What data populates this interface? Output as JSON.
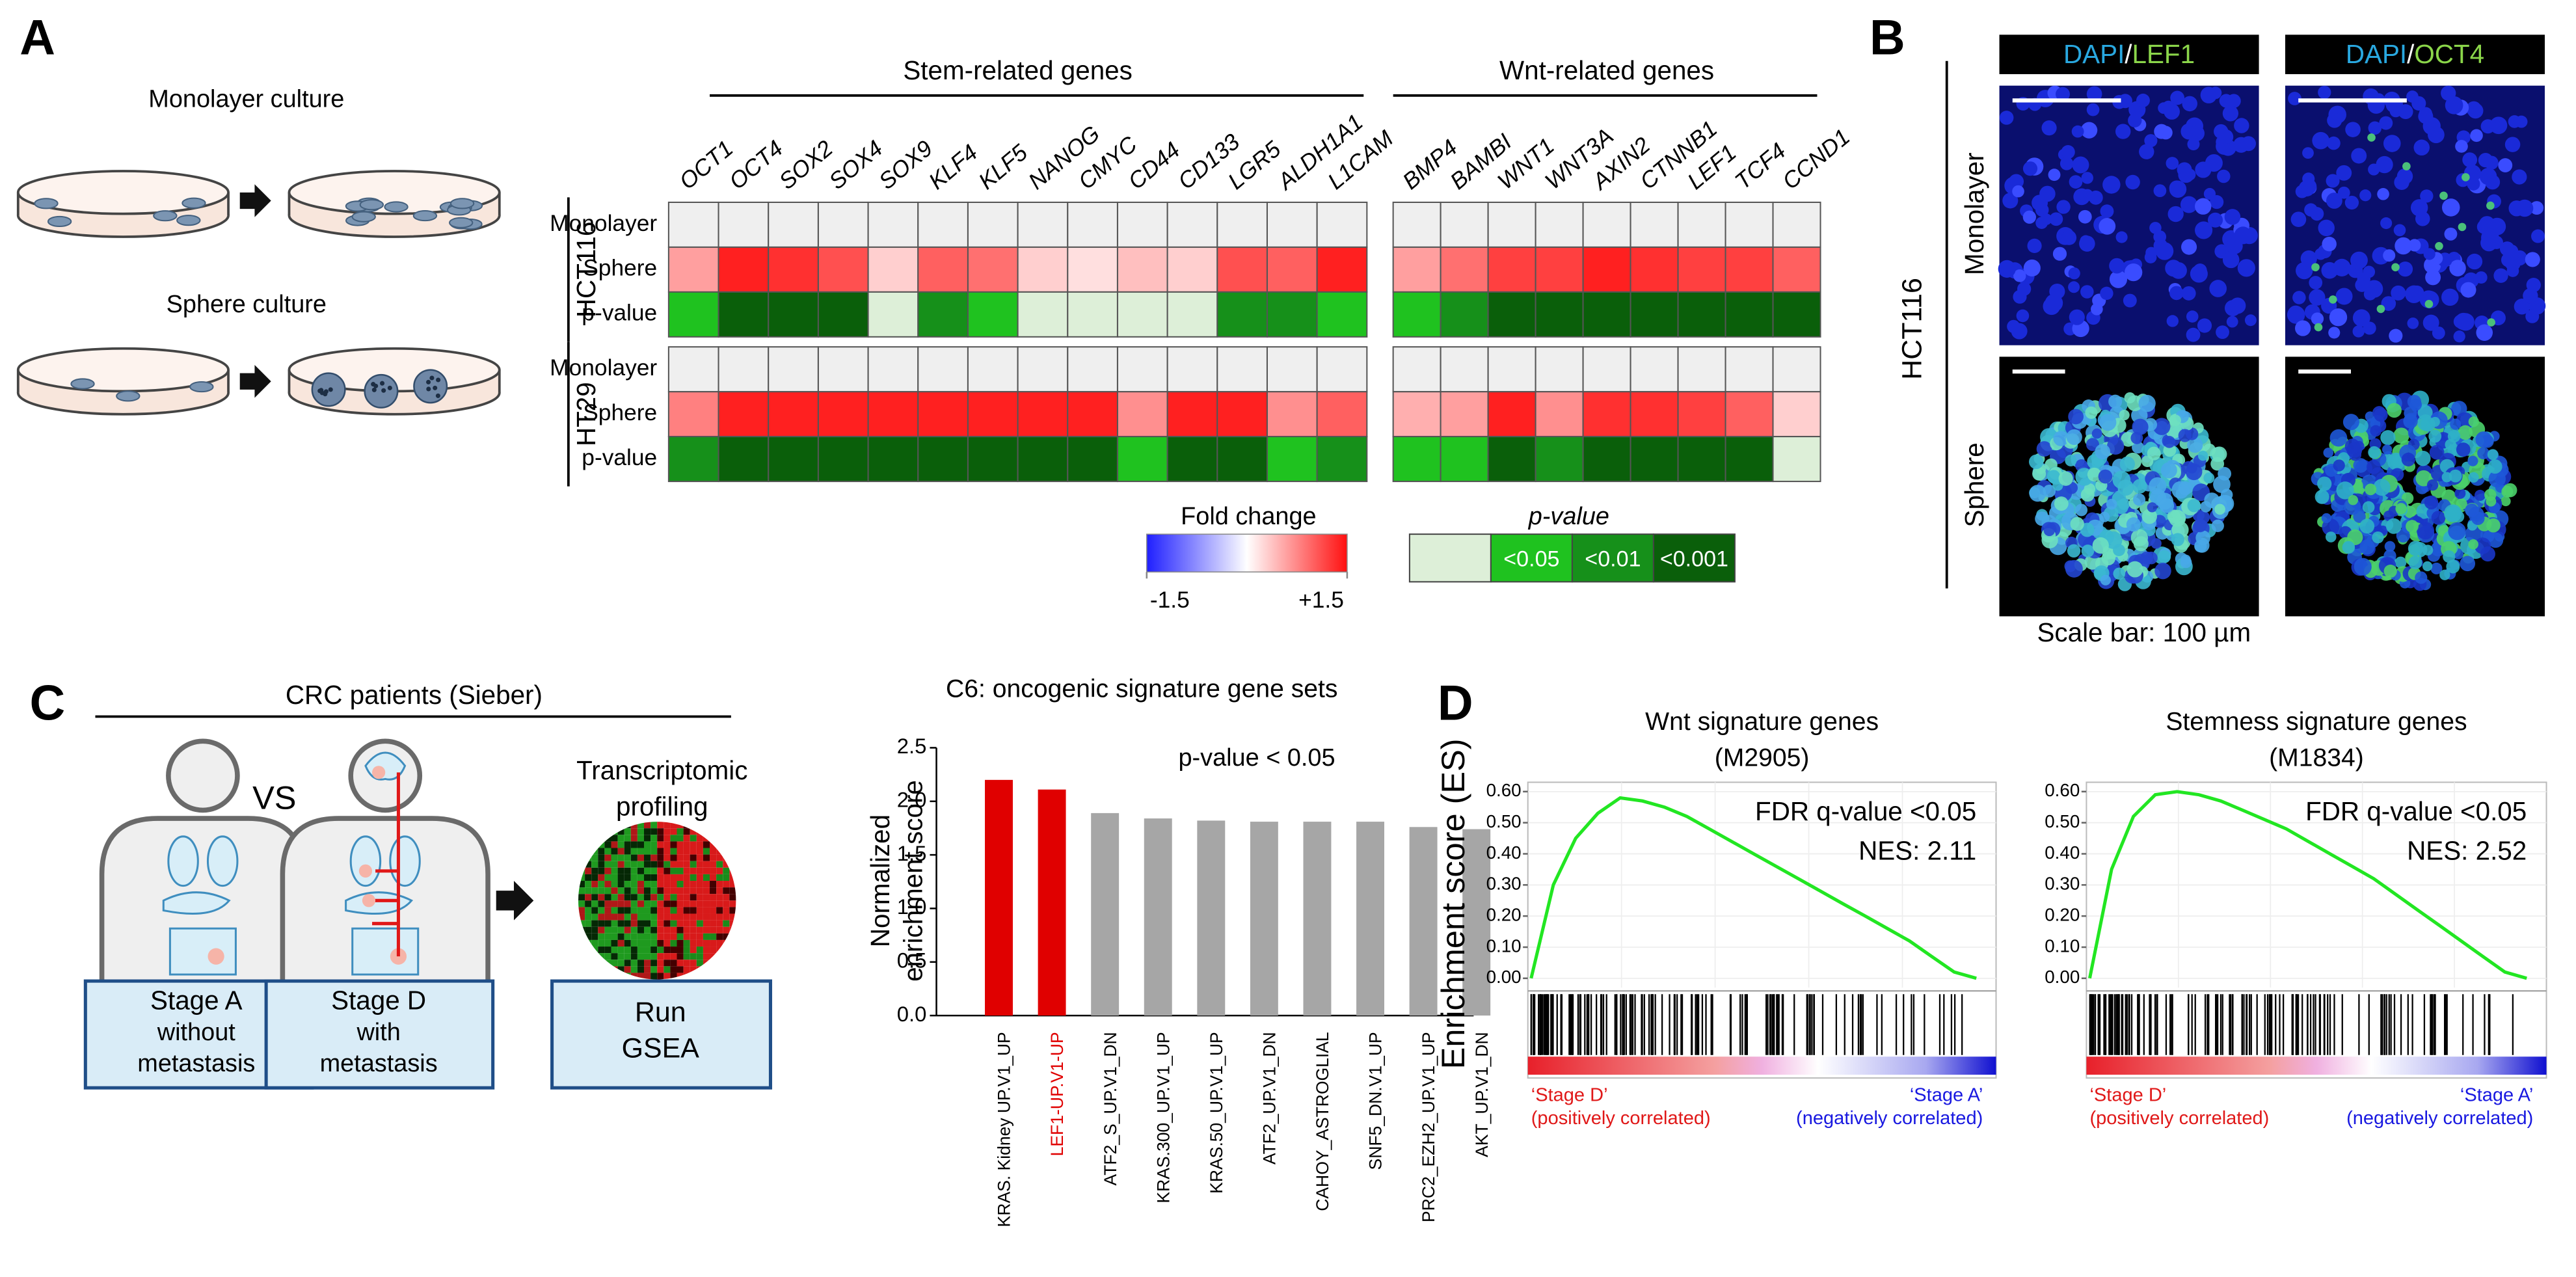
{
  "panel_labels": [
    "A",
    "B",
    "C",
    "D"
  ],
  "panel_a": {
    "culture": {
      "monolayer": "Monolayer culture",
      "sphere": "Sphere culture"
    },
    "heatmap": {
      "groups": [
        {
          "title": "Stem-related genes",
          "genes": [
            "OCT1",
            "OCT4",
            "SOX2",
            "SOX4",
            "SOX9",
            "KLF4",
            "KLF5",
            "NANOG",
            "CMYC",
            "CD44",
            "CD133",
            "LGR5",
            "ALDH1A1",
            "L1CAM"
          ]
        },
        {
          "title": "Wnt-related genes",
          "genes": [
            "BMP4",
            "BAMBI",
            "WNT1",
            "WNT3A",
            "AXIN2",
            "CTNNB1",
            "LEF1",
            "TCF4",
            "CCND1"
          ]
        }
      ],
      "row_labels": [
        "Monolayer",
        "Sphere",
        "p-value"
      ],
      "cell_lines": [
        {
          "name": "HCT116",
          "monolayer": [
            [
              0,
              0,
              0,
              0,
              0,
              0,
              0,
              0,
              0,
              0,
              0,
              0,
              0,
              0
            ],
            [
              0,
              0,
              0,
              0,
              0,
              0,
              0,
              0,
              0
            ]
          ],
          "sphere": [
            [
              0.6,
              1.4,
              1.3,
              1.1,
              0.3,
              1.0,
              0.9,
              0.3,
              0.2,
              0.4,
              0.3,
              1.1,
              1.0,
              1.4
            ],
            [
              0.6,
              0.9,
              1.2,
              1.2,
              1.4,
              1.3,
              1.2,
              1.2,
              1.0
            ]
          ],
          "p_level": [
            [
              1,
              3,
              3,
              3,
              0,
              2,
              1,
              0,
              0,
              0,
              0,
              2,
              2,
              1
            ],
            [
              1,
              2,
              3,
              3,
              3,
              3,
              3,
              3,
              3
            ]
          ]
        },
        {
          "name": "HT29",
          "monolayer": [
            [
              0,
              0,
              0,
              0,
              0,
              0,
              0,
              0,
              0,
              0,
              0,
              0,
              0,
              0
            ],
            [
              0,
              0,
              0,
              0,
              0,
              0,
              0,
              0,
              0
            ]
          ],
          "sphere": [
            [
              0.8,
              1.4,
              1.4,
              1.4,
              1.4,
              1.4,
              1.4,
              1.4,
              1.4,
              0.7,
              1.4,
              1.4,
              0.7,
              1.0
            ],
            [
              0.5,
              0.6,
              1.4,
              0.7,
              1.3,
              1.3,
              1.2,
              1.0,
              0.3
            ]
          ],
          "p_level": [
            [
              2,
              3,
              3,
              3,
              3,
              3,
              3,
              3,
              3,
              1,
              3,
              3,
              1,
              2
            ],
            [
              1,
              1,
              3,
              2,
              3,
              3,
              3,
              3,
              0
            ]
          ]
        }
      ],
      "fold_legend": {
        "title": "Fold change",
        "range": [
          {
            "value": -1.5,
            "label": "-1.5"
          },
          {
            "value": 1.5,
            "label": "+1.5"
          }
        ],
        "colors": [
          "#1f1fff",
          "#ffffff",
          "#ff1010"
        ],
        "baseline_color": "#efefef"
      },
      "p_legend": {
        "title": "p-value",
        "labels": [
          "<0.05",
          "<0.01",
          "<0.001"
        ],
        "colors": [
          "#ddefd8",
          "#1fc21f",
          "#16901a",
          "#0a5f0a"
        ]
      }
    }
  },
  "panel_b": {
    "stains": [
      [
        "DAPI",
        "/",
        "LEF1"
      ],
      [
        "DAPI",
        "/",
        "OCT4"
      ]
    ],
    "stain_colors": [
      "#29a8e0",
      "#ffffff",
      "#8bd64a"
    ],
    "rows": [
      "Monolayer",
      "Sphere"
    ],
    "cell_line": "HCT116",
    "scale_note": "Scale bar: 100 µm"
  },
  "panel_c": {
    "cohort": "CRC patients (Sieber)",
    "vs": "VS",
    "stage_boxes": [
      [
        "Stage A",
        "without",
        "metastasis"
      ],
      [
        "Stage D",
        "with",
        "metastasis"
      ]
    ],
    "profiling": [
      "Transcriptomic",
      "profiling"
    ],
    "run": [
      "Run",
      "GSEA"
    ]
  },
  "chart_data": [
    {
      "type": "bar",
      "title": "C6: oncogenic signature gene sets",
      "y_label": [
        "Normalized",
        "enrichment score"
      ],
      "annotation": "p-value < 0.05",
      "categories": [
        "KRAS. Kidney UP.V1_UP",
        "LEF1-UP.V1-UP",
        "ATF2_S_UP.V1_DN",
        "KRAS.300_UP.V1_UP",
        "KRAS.50_UP.V1_UP",
        "ATF2_UP.V1_DN",
        "CAHOY_ASTROGLIAL",
        "SNF5_DN.V1_UP",
        "PRC2_EZH2_UP.V1_UP",
        "AKT_UP.V1_DN"
      ],
      "values": [
        2.2,
        2.11,
        1.89,
        1.84,
        1.82,
        1.81,
        1.81,
        1.81,
        1.76,
        1.74
      ],
      "colors": [
        "#e00000",
        "#e00000",
        "#a6a6a6",
        "#a6a6a6",
        "#a6a6a6",
        "#a6a6a6",
        "#a6a6a6",
        "#a6a6a6",
        "#a6a6a6",
        "#a6a6a6"
      ],
      "category_colors": [
        "#000000",
        "#e00000",
        "#000000",
        "#000000",
        "#000000",
        "#000000",
        "#000000",
        "#000000",
        "#000000",
        "#000000"
      ],
      "ylim": [
        0,
        2.5
      ],
      "yticks": [
        {
          "value": 0,
          "label": "0.0"
        },
        {
          "value": 0.5,
          "label": "0.5"
        },
        {
          "value": 1,
          "label": "1.0"
        },
        {
          "value": 1.5,
          "label": "1.5"
        },
        {
          "value": 2,
          "label": "2.0"
        },
        {
          "value": 2.5,
          "label": "2.5"
        }
      ]
    },
    {
      "type": "line",
      "title": [
        "Wnt signature genes",
        "(M2905)"
      ],
      "y_label": "Enrichment score (ES)",
      "annotations": [
        "FDR q-value <0.05",
        "NES: 2.11"
      ],
      "values": [
        0,
        0.3,
        0.45,
        0.53,
        0.58,
        0.57,
        0.55,
        0.52,
        0.48,
        0.44,
        0.4,
        0.36,
        0.32,
        0.28,
        0.24,
        0.2,
        0.16,
        0.12,
        0.07,
        0.02,
        0
      ],
      "color": "#22e622",
      "grid": true,
      "ylim": [
        -0.03,
        0.63
      ],
      "yticks": [
        {
          "value": 0,
          "label": "0.00"
        },
        {
          "value": 0.1,
          "label": "0.10"
        },
        {
          "value": 0.2,
          "label": "0.20"
        },
        {
          "value": 0.3,
          "label": "0.30"
        },
        {
          "value": 0.4,
          "label": "0.40"
        },
        {
          "value": 0.5,
          "label": "0.50"
        },
        {
          "value": 0.6,
          "label": "0.60"
        }
      ],
      "rank_labels": {
        "left": [
          "‘Stage D’",
          "(positively correlated)"
        ],
        "right": [
          "‘Stage A’",
          "(negatively correlated)"
        ]
      }
    },
    {
      "type": "line",
      "title": [
        "Stemness signature genes",
        "(M1834)"
      ],
      "annotations": [
        "FDR q-value <0.05",
        "NES: 2.52"
      ],
      "values": [
        0,
        0.35,
        0.52,
        0.59,
        0.6,
        0.59,
        0.57,
        0.54,
        0.51,
        0.48,
        0.44,
        0.4,
        0.36,
        0.32,
        0.27,
        0.22,
        0.17,
        0.12,
        0.07,
        0.02,
        0
      ],
      "color": "#22e622",
      "grid": true,
      "ylim": [
        -0.03,
        0.63
      ],
      "yticks": [
        {
          "value": 0,
          "label": "0.00"
        },
        {
          "value": 0.1,
          "label": "0.10"
        },
        {
          "value": 0.2,
          "label": "0.20"
        },
        {
          "value": 0.3,
          "label": "0.30"
        },
        {
          "value": 0.4,
          "label": "0.40"
        },
        {
          "value": 0.5,
          "label": "0.50"
        },
        {
          "value": 0.6,
          "label": "0.60"
        }
      ],
      "rank_labels": {
        "left": [
          "‘Stage D’",
          "(positively correlated)"
        ],
        "right": [
          "‘Stage A’",
          "(negatively correlated)"
        ]
      }
    }
  ]
}
